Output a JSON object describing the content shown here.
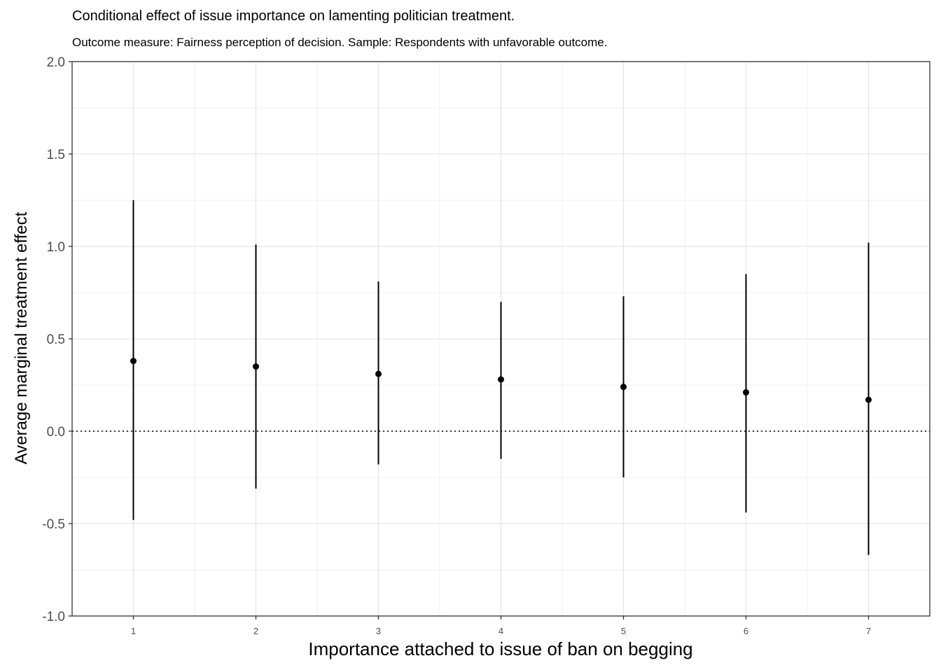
{
  "chart_data": {
    "type": "scatter",
    "title": "Conditional effect of issue importance on lamenting politician treatment.",
    "subtitle": "Outcome measure: Fairness perception of decision. Sample: Respondents with unfavorable outcome.",
    "xlabel": "Importance attached to issue of ban on begging",
    "ylabel": "Average marginal treatment effect",
    "x": [
      1,
      2,
      3,
      4,
      5,
      6,
      7
    ],
    "y": [
      0.38,
      0.35,
      0.31,
      0.28,
      0.24,
      0.21,
      0.17
    ],
    "ci_low": [
      -0.48,
      -0.31,
      -0.18,
      -0.15,
      -0.25,
      -0.44,
      -0.67
    ],
    "ci_high": [
      1.25,
      1.01,
      0.81,
      0.7,
      0.73,
      0.85,
      1.02
    ],
    "xlim": [
      0.5,
      7.5
    ],
    "ylim": [
      -1.0,
      2.0
    ],
    "x_ticks": [
      "1",
      "2",
      "3",
      "4",
      "5",
      "6",
      "7"
    ],
    "y_ticks": [
      "2.0",
      "1.5",
      "1.0",
      "0.5",
      "0.0",
      "-0.5",
      "-1.0"
    ],
    "reference_line": {
      "y": 0,
      "style": "dotted"
    },
    "grid": true,
    "legend": "none"
  }
}
